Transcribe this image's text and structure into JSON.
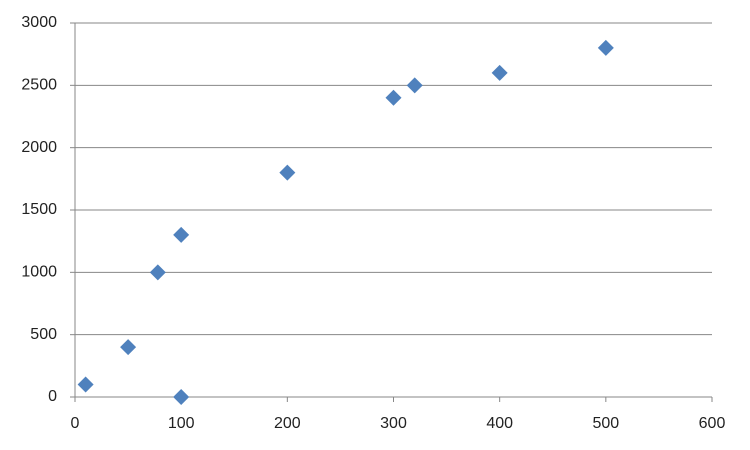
{
  "chart_data": {
    "type": "scatter",
    "x": [
      10,
      50,
      78,
      100,
      100,
      200,
      300,
      320,
      400,
      500
    ],
    "values": [
      100,
      400,
      1000,
      1300,
      0,
      1800,
      2400,
      2500,
      2600,
      2800
    ],
    "color": "#4f81bd",
    "xlim": [
      0,
      600
    ],
    "xticks": [
      0,
      100,
      200,
      300,
      400,
      500,
      600
    ],
    "ylim": [
      0,
      3000
    ],
    "yticks": [
      0,
      500,
      1000,
      1500,
      2000,
      2500,
      3000
    ],
    "grid": true
  }
}
